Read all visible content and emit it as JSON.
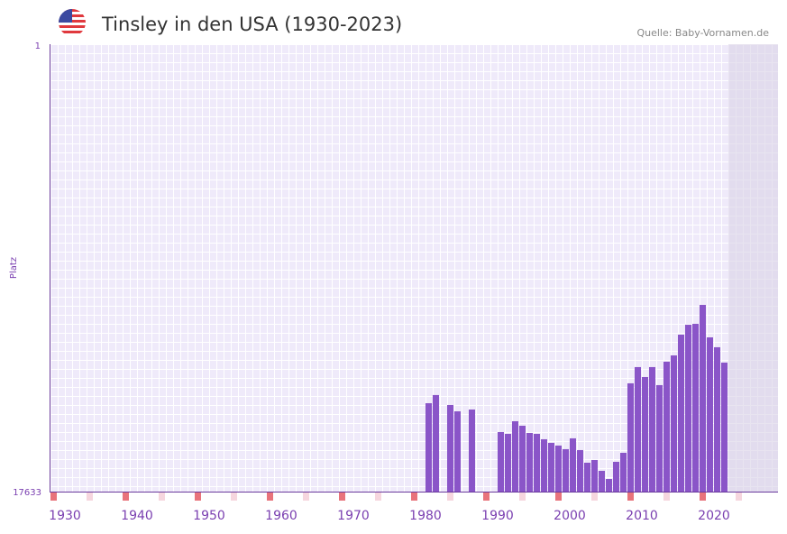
{
  "header": {
    "flag_icon": "us-flag-icon",
    "title": "Tinsley in den USA (1930-2023)",
    "source": "Quelle: Baby-Vornamen.de"
  },
  "colors": {
    "bar": "#8a55c8",
    "axis": "#6a3a9c",
    "label": "#7a3fb0",
    "grid_bg": "#efeafa",
    "marker_decade": "#e8737b",
    "marker_half": "#f6d6de",
    "future_shade": "#e2dcec"
  },
  "chart_data": {
    "type": "bar",
    "title": "Tinsley in den USA (1930-2023)",
    "ylabel": "Platz",
    "xlabel": "",
    "y_scale": "log",
    "y_reversed": true,
    "ylim": [
      1,
      17633
    ],
    "y_tick_labels": [
      "1",
      "17633"
    ],
    "xlim": [
      1928,
      2028
    ],
    "x_tick_labels": [
      "1930",
      "1940",
      "1950",
      "1960",
      "1970",
      "1980",
      "1990",
      "2000",
      "2010",
      "2020"
    ],
    "future_from_year": 2022,
    "grid": true,
    "points": [
      {
        "year": 1980,
        "rank": 2555
      },
      {
        "year": 1981,
        "rank": 2137
      },
      {
        "year": 1983,
        "rank": 2657
      },
      {
        "year": 1984,
        "rank": 3051
      },
      {
        "year": 1986,
        "rank": 2933
      },
      {
        "year": 1990,
        "rank": 4800
      },
      {
        "year": 1991,
        "rank": 4992
      },
      {
        "year": 1992,
        "rank": 3789
      },
      {
        "year": 1993,
        "rank": 4181
      },
      {
        "year": 1994,
        "rank": 4893
      },
      {
        "year": 1995,
        "rank": 4992
      },
      {
        "year": 1996,
        "rank": 5617
      },
      {
        "year": 1997,
        "rank": 6076
      },
      {
        "year": 1998,
        "rank": 6446
      },
      {
        "year": 1999,
        "rank": 6976
      },
      {
        "year": 2000,
        "rank": 5506
      },
      {
        "year": 2001,
        "rank": 7117
      },
      {
        "year": 2002,
        "rank": 9379
      },
      {
        "year": 2003,
        "rank": 8841
      },
      {
        "year": 2004,
        "rank": 11197
      },
      {
        "year": 2005,
        "rank": 13383
      },
      {
        "year": 2006,
        "rank": 9194
      },
      {
        "year": 2007,
        "rank": 7553
      },
      {
        "year": 2008,
        "rank": 1654
      },
      {
        "year": 2009,
        "rank": 1160
      },
      {
        "year": 2010,
        "rank": 1442
      },
      {
        "year": 2011,
        "rank": 1160
      },
      {
        "year": 2012,
        "rank": 1721
      },
      {
        "year": 2013,
        "rank": 1031
      },
      {
        "year": 2014,
        "rank": 899
      },
      {
        "year": 2015,
        "rank": 571
      },
      {
        "year": 2016,
        "rank": 460
      },
      {
        "year": 2017,
        "rank": 451
      },
      {
        "year": 2018,
        "rank": 298
      },
      {
        "year": 2019,
        "rank": 606
      },
      {
        "year": 2020,
        "rank": 752
      },
      {
        "year": 2021,
        "rank": 1052
      }
    ]
  }
}
